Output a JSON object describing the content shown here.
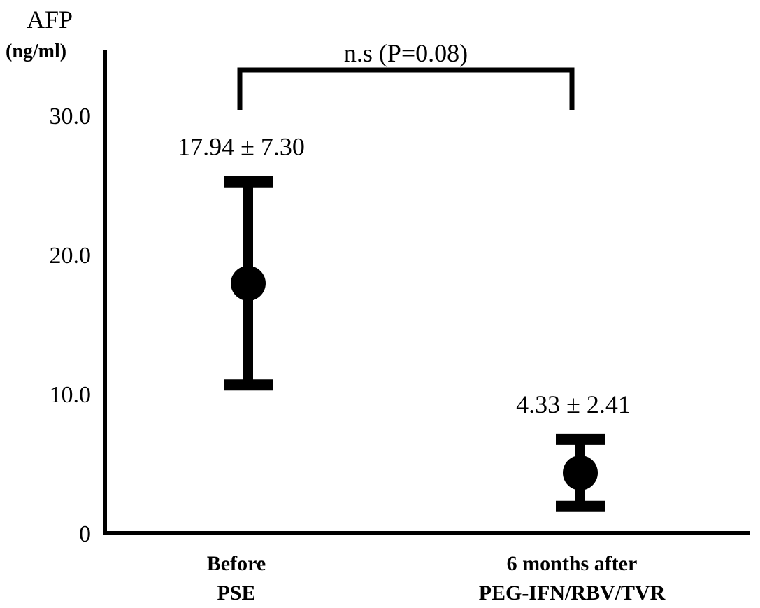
{
  "chart_data": {
    "type": "scatter",
    "ylabel": "AFP",
    "yunit": "(ng/ml)",
    "ylim": [
      0,
      30
    ],
    "yticks": [
      {
        "value": 0,
        "label": "0"
      },
      {
        "value": 10,
        "label": "10.0"
      },
      {
        "value": 20,
        "label": "20.0"
      },
      {
        "value": 30,
        "label": "30.0"
      }
    ],
    "categories": [
      [
        "Before",
        "PSE"
      ],
      [
        "6 months after",
        "PEG-IFN/RBV/TVR"
      ]
    ],
    "points": [
      {
        "mean": 17.94,
        "err": 7.3,
        "label": "17.94 ± 7.30"
      },
      {
        "mean": 4.33,
        "err": 2.41,
        "label": "4.33 ± 2.41"
      }
    ],
    "significance": {
      "label": "n.s (P=0.08)",
      "from": 0,
      "to": 1
    },
    "grid": false,
    "legend": "none",
    "color": "#000000"
  }
}
